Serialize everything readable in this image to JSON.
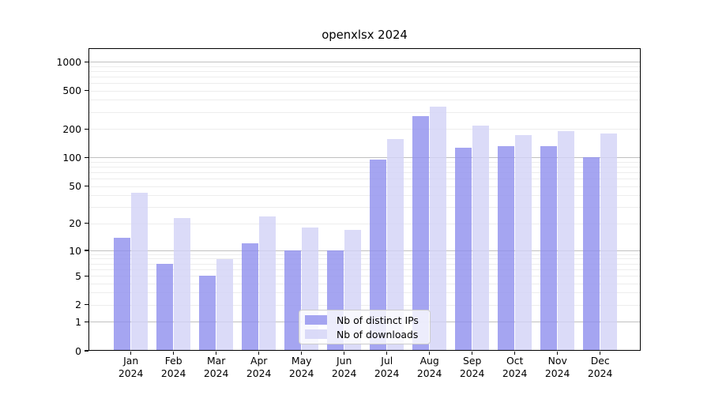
{
  "chart_data": {
    "type": "bar",
    "title": "openxlsx 2024",
    "scale": "log1p",
    "categories": [
      "Jan",
      "Feb",
      "Mar",
      "Apr",
      "May",
      "Jun",
      "Jul",
      "Aug",
      "Sep",
      "Oct",
      "Nov",
      "Dec"
    ],
    "year": "2024",
    "series": [
      {
        "name": "Nb of distinct IPs",
        "color": "#8f8fed",
        "opacity": 0.8,
        "values": [
          14,
          7,
          5,
          12,
          10,
          10,
          96,
          272,
          128,
          134,
          134,
          102
        ]
      },
      {
        "name": "Nb of downloads",
        "color": "#d2d2f6",
        "opacity": 0.8,
        "values": [
          43,
          23,
          8,
          24,
          18,
          17,
          158,
          340,
          216,
          173,
          192,
          180
        ]
      }
    ],
    "y_ticks": [
      0,
      1,
      2,
      5,
      10,
      20,
      50,
      100,
      200,
      500,
      1000
    ],
    "ylim": [
      0,
      1394
    ],
    "grid": {
      "visible": true,
      "major_color": "#c0c0c0",
      "minor_color": "#ededed"
    },
    "legend_position": "lower-center",
    "spine_color": "#000000",
    "background_color": "#ffffff"
  }
}
